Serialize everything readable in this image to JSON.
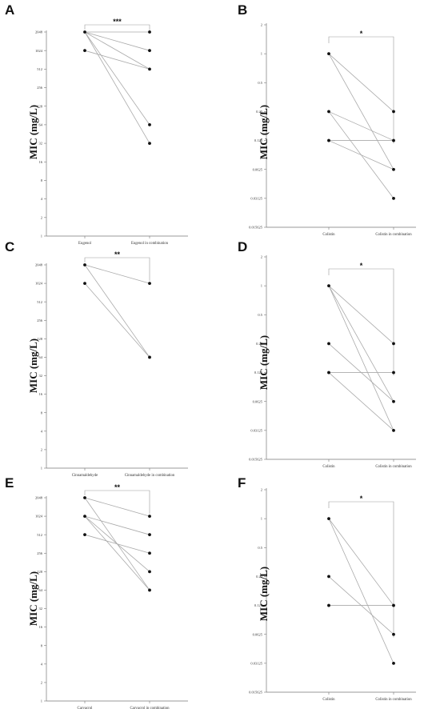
{
  "chart_data": [
    {
      "panel": "A",
      "type": "scatter",
      "scale": "log2",
      "ylabel": "MIC (mg/L)",
      "categories": [
        "Eugenol",
        "Eugenol in combination"
      ],
      "ticks": [
        "1",
        "2",
        "4",
        "8",
        "16",
        "32",
        "64",
        "128",
        "256",
        "512",
        "1024",
        "2048"
      ],
      "pairs": [
        [
          2048,
          2048
        ],
        [
          2048,
          1024
        ],
        [
          2048,
          512
        ],
        [
          2048,
          64
        ],
        [
          2048,
          32
        ],
        [
          1024,
          512
        ]
      ],
      "significance": "***"
    },
    {
      "panel": "B",
      "type": "scatter",
      "scale": "log2",
      "ylabel": "MIC (mg/L)",
      "categories": [
        "Colistin",
        "Colistin in combination"
      ],
      "ticks": [
        "0.015625",
        "0.03125",
        "0.0625",
        "0.125",
        "0.25",
        "0.5",
        "1",
        "2"
      ],
      "pairs": [
        [
          1,
          0.25
        ],
        [
          1,
          0.0625
        ],
        [
          0.25,
          0.125
        ],
        [
          0.25,
          0.03125
        ],
        [
          0.125,
          0.125
        ],
        [
          0.125,
          0.0625
        ]
      ],
      "significance": "*"
    },
    {
      "panel": "C",
      "type": "scatter",
      "scale": "log2",
      "ylabel": "MIC (mg/L)",
      "categories": [
        "Cinnamaldehyde",
        "Cinnamaldehyde in combination"
      ],
      "ticks": [
        "1",
        "2",
        "4",
        "8",
        "16",
        "32",
        "64",
        "128",
        "256",
        "512",
        "1024",
        "2048"
      ],
      "pairs": [
        [
          2048,
          1024
        ],
        [
          2048,
          64
        ],
        [
          1024,
          64
        ]
      ],
      "significance": "**"
    },
    {
      "panel": "D",
      "type": "scatter",
      "scale": "log2",
      "ylabel": "MIC (mg/L)",
      "categories": [
        "Colistin",
        "Colistin in combination"
      ],
      "ticks": [
        "0.015625",
        "0.03125",
        "0.0625",
        "0.125",
        "0.25",
        "0.5",
        "1",
        "2"
      ],
      "pairs": [
        [
          1,
          0.25
        ],
        [
          1,
          0.0625
        ],
        [
          1,
          0.03125
        ],
        [
          0.25,
          0.0625
        ],
        [
          0.125,
          0.125
        ],
        [
          0.125,
          0.03125
        ]
      ],
      "significance": "*"
    },
    {
      "panel": "E",
      "type": "scatter",
      "scale": "log2",
      "ylabel": "MIC (mg/L)",
      "categories": [
        "Carvacrol",
        "Carvacrol in combination"
      ],
      "ticks": [
        "1",
        "2",
        "4",
        "8",
        "16",
        "32",
        "64",
        "128",
        "256",
        "512",
        "1024",
        "2048"
      ],
      "pairs": [
        [
          2048,
          1024
        ],
        [
          2048,
          64
        ],
        [
          1024,
          512
        ],
        [
          1024,
          128
        ],
        [
          512,
          256
        ],
        [
          1024,
          64
        ]
      ],
      "significance": "**"
    },
    {
      "panel": "F",
      "type": "scatter",
      "scale": "log2",
      "ylabel": "MIC (mg/L)",
      "categories": [
        "Colistin",
        "Colistin in combination"
      ],
      "ticks": [
        "0.015625",
        "0.03125",
        "0.0625",
        "0.125",
        "0.25",
        "0.5",
        "1",
        "2"
      ],
      "pairs": [
        [
          1,
          0.125
        ],
        [
          1,
          0.03125
        ],
        [
          0.25,
          0.0625
        ],
        [
          0.125,
          0.125
        ]
      ],
      "significance": "*"
    }
  ]
}
